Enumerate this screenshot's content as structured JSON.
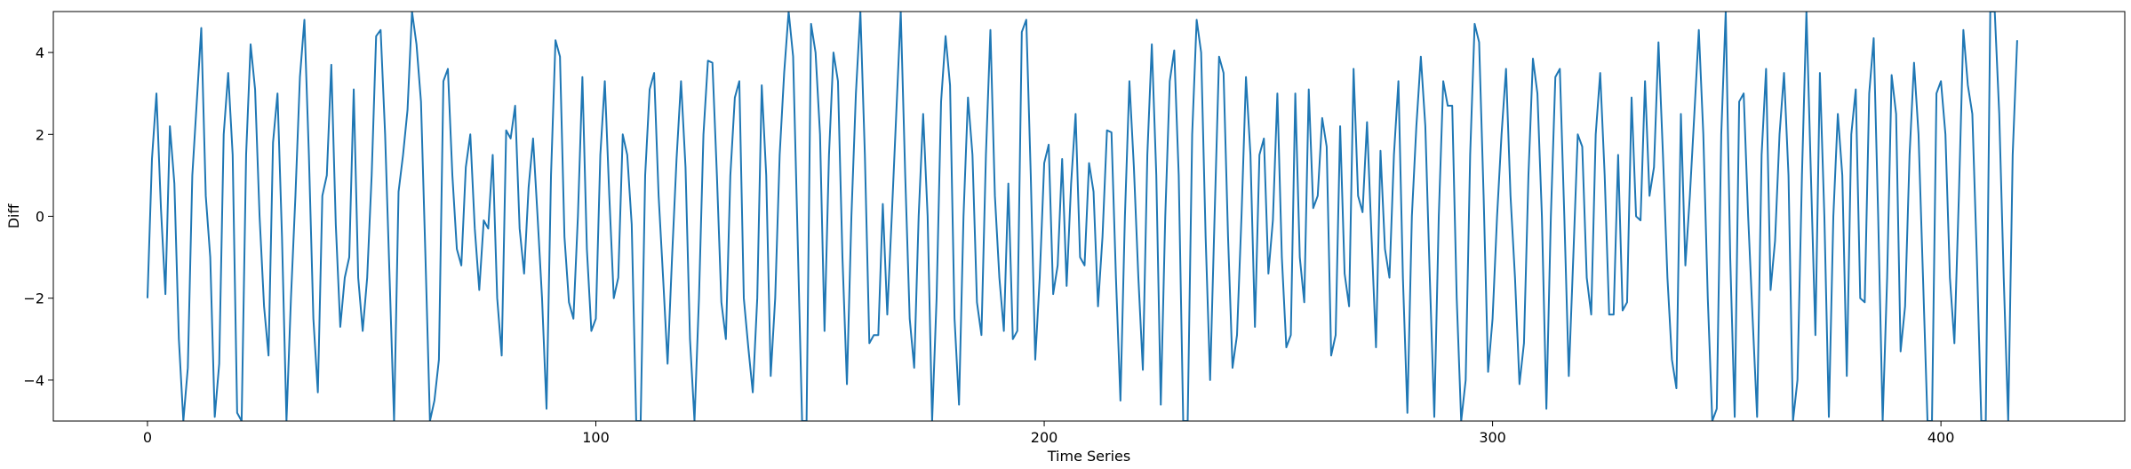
{
  "chart_data": {
    "type": "line",
    "title": "",
    "xlabel": "Time Series",
    "ylabel": "Diff",
    "xlim": [
      -21,
      441
    ],
    "ylim": [
      -5,
      5
    ],
    "xticks": [
      0,
      100,
      200,
      300,
      400
    ],
    "yticks": [
      -4,
      -2,
      0,
      2,
      4
    ],
    "xtick_labels": [
      "0",
      "100",
      "200",
      "300",
      "400"
    ],
    "ytick_labels": [
      "−4",
      "−2",
      "0",
      "2",
      "4"
    ],
    "grid": false,
    "legend": "none",
    "line_color": "#1f77b4",
    "series": [
      {
        "values": [
          -2.0,
          1.4,
          3.0,
          0.2,
          -1.9,
          2.2,
          0.8,
          -3.0,
          -5.0,
          -3.7,
          1.0,
          2.8,
          4.6,
          0.5,
          -1.0,
          -4.9,
          -3.6,
          2.0,
          3.5,
          1.5,
          -4.8,
          -5.0,
          1.5,
          4.2,
          3.1,
          0.0,
          -2.2,
          -3.4,
          1.8,
          3.0,
          -0.5,
          -5.0,
          -2.0,
          0.5,
          3.4,
          4.8,
          1.5,
          -2.5,
          -4.3,
          0.5,
          1.0,
          3.7,
          -0.2,
          -2.7,
          -1.5,
          -1.0,
          3.1,
          -1.5,
          -2.8,
          -1.5,
          1.0,
          4.4,
          4.55,
          2.0,
          -1.5,
          -5.0,
          0.6,
          1.5,
          2.6,
          5.0,
          4.2,
          2.8,
          -1.0,
          -5.0,
          -4.5,
          -3.5,
          3.3,
          3.6,
          1.0,
          -0.8,
          -1.2,
          1.2,
          2.0,
          -0.3,
          -1.8,
          -0.1,
          -0.3,
          1.5,
          -2.0,
          -3.4,
          2.1,
          1.9,
          2.7,
          -0.3,
          -1.4,
          0.7,
          1.9,
          0.0,
          -2.0,
          -4.7,
          1.0,
          4.3,
          3.9,
          -0.5,
          -2.1,
          -2.5,
          0.0,
          3.4,
          -0.8,
          -2.8,
          -2.5,
          1.5,
          3.3,
          0.5,
          -2.0,
          -1.5,
          2.0,
          1.5,
          -0.2,
          -5.0,
          -5.0,
          1.0,
          3.1,
          3.5,
          0.5,
          -1.5,
          -3.6,
          -1.0,
          1.4,
          3.3,
          1.2,
          -3.0,
          -5.0,
          -2.0,
          2.0,
          3.8,
          3.75,
          1.0,
          -2.1,
          -3.0,
          1.0,
          2.9,
          3.3,
          -2.0,
          -3.2,
          -4.3,
          -2.0,
          3.2,
          1.0,
          -3.9,
          -2.0,
          1.5,
          3.5,
          5.0,
          3.9,
          -0.5,
          -5.0,
          -5.0,
          4.7,
          4.0,
          2.0,
          -2.8,
          1.5,
          4.0,
          3.3,
          -1.0,
          -4.1,
          0.0,
          3.0,
          5.0,
          1.5,
          -3.1,
          -2.9,
          -2.9,
          0.3,
          -2.4,
          0.0,
          2.5,
          5.0,
          1.0,
          -2.5,
          -3.7,
          0.0,
          2.5,
          0.0,
          -5.0,
          -2.0,
          2.8,
          4.4,
          3.2,
          -2.5,
          -4.6,
          0.0,
          2.9,
          1.5,
          -2.1,
          -2.9,
          1.5,
          4.55,
          0.5,
          -1.5,
          -2.8,
          0.8,
          -3.0,
          -2.8,
          4.5,
          4.8,
          1.0,
          -3.5,
          -1.5,
          1.3,
          1.75,
          -1.9,
          -1.2,
          1.4,
          -1.7,
          0.8,
          2.5,
          -1.0,
          -1.2,
          1.3,
          0.6,
          -2.2,
          -0.5,
          2.1,
          2.05,
          -1.5,
          -4.5,
          0.0,
          3.3,
          1.2,
          -1.5,
          -3.75,
          1.5,
          4.2,
          1.0,
          -4.6,
          0.0,
          3.3,
          4.05,
          1.0,
          -5.0,
          -5.0,
          2.0,
          4.8,
          4.0,
          -0.5,
          -4.0,
          0.0,
          3.9,
          3.5,
          -0.5,
          -3.7,
          -2.9,
          0.0,
          3.4,
          1.5,
          -2.7,
          1.5,
          1.9,
          -1.4,
          -0.1,
          3.0,
          -1.0,
          -3.2,
          -2.9,
          3.0,
          -1.0,
          -2.1,
          3.1,
          0.2,
          0.5,
          2.4,
          1.7,
          -3.4,
          -2.9,
          2.2,
          -1.4,
          -2.2,
          3.6,
          0.5,
          0.1,
          2.3,
          -0.5,
          -3.2,
          1.6,
          -0.8,
          -1.5,
          1.5,
          3.3,
          -1.5,
          -4.8,
          0.0,
          2.2,
          3.9,
          2.2,
          -1.5,
          -4.9,
          0.0,
          3.3,
          2.7,
          2.7,
          -2.0,
          -5.0,
          -4.0,
          1.5,
          4.7,
          4.25,
          0.5,
          -3.8,
          -2.5,
          0.0,
          2.0,
          3.6,
          0.5,
          -1.5,
          -4.1,
          -3.1,
          1.0,
          3.85,
          3.0,
          0.0,
          -4.7,
          0.0,
          3.4,
          3.6,
          0.0,
          -3.9,
          -1.0,
          2.0,
          1.7,
          -1.5,
          -2.4,
          2.0,
          3.5,
          1.0,
          -2.4,
          -2.4,
          1.5,
          -2.3,
          -2.1,
          2.9,
          0.0,
          -0.1,
          3.3,
          0.5,
          1.2,
          4.25,
          1.5,
          -1.5,
          -3.5,
          -4.2,
          2.5,
          -1.2,
          0.5,
          2.5,
          4.55,
          2.0,
          -2.0,
          -5.0,
          -4.7,
          2.0,
          5.0,
          -1.0,
          -4.9,
          2.8,
          3.0,
          0.0,
          -2.5,
          -4.9,
          1.5,
          3.6,
          -1.8,
          -0.6,
          2.0,
          3.5,
          1.0,
          -5.0,
          -4.0,
          1.0,
          5.0,
          1.0,
          -2.9,
          3.5,
          0.0,
          -4.9,
          0.0,
          2.5,
          1.0,
          -3.9,
          2.0,
          3.1,
          -2.0,
          -2.1,
          3.0,
          4.35,
          0.0,
          -5.0,
          -1.5,
          3.45,
          2.5,
          -3.3,
          -2.2,
          1.5,
          3.75,
          2.0,
          -1.5,
          -5.0,
          -5.0,
          3.0,
          3.3,
          2.0,
          -1.5,
          -3.1,
          0.5,
          4.55,
          3.2,
          2.5,
          -1.0,
          -5.0,
          -5.0,
          5.0,
          5.0,
          2.5,
          -1.5,
          -5.0,
          1.5,
          4.3
        ]
      }
    ]
  }
}
